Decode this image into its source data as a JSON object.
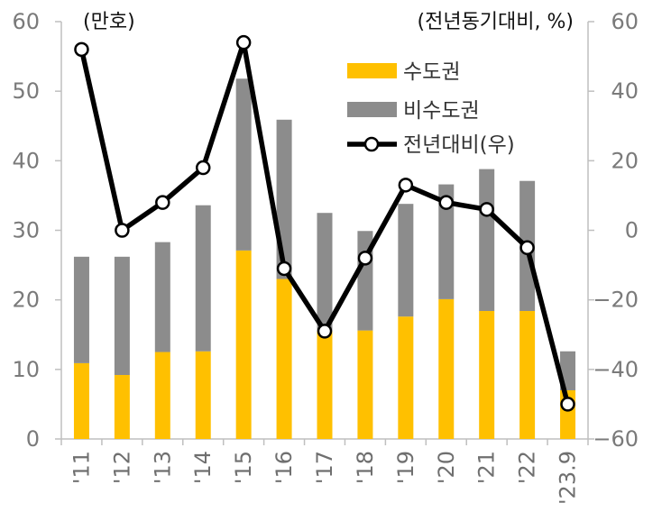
{
  "chart_data": {
    "type": "bar",
    "categories": [
      "'11",
      "'12",
      "'13",
      "'14",
      "'15",
      "'16",
      "'17",
      "'18",
      "'19",
      "'20",
      "'21",
      "'22",
      "'23.9"
    ],
    "series": [
      {
        "name": "수도권",
        "axis": "left",
        "kind": "stacked-bar",
        "color": "#FFC000",
        "values": [
          10.9,
          9.2,
          12.5,
          12.6,
          27.1,
          23.0,
          15.5,
          15.6,
          17.6,
          20.1,
          18.4,
          18.4,
          7.0
        ]
      },
      {
        "name": "비수도권",
        "axis": "left",
        "kind": "stacked-bar",
        "color": "#8C8C8C",
        "values": [
          15.3,
          17.0,
          15.8,
          21.0,
          24.7,
          22.9,
          17.0,
          14.3,
          16.2,
          16.5,
          20.4,
          18.7,
          5.6
        ]
      },
      {
        "name": "전년대비(우)",
        "axis": "right",
        "kind": "line",
        "color": "#000000",
        "values": [
          52,
          0,
          8,
          18,
          54,
          -11,
          -29,
          -8,
          13,
          8,
          6,
          -5,
          -50
        ]
      }
    ],
    "left_axis": {
      "unit_label": "(만호)",
      "ylim": [
        0,
        60
      ],
      "ticks": [
        "0",
        "10",
        "20",
        "30",
        "40",
        "50",
        "60"
      ]
    },
    "right_axis": {
      "unit_label": "(전년동기대비, %)",
      "ylim": [
        -60,
        60
      ],
      "ticks": [
        "−60",
        "−40",
        "−20",
        "0",
        "20",
        "40",
        "60"
      ]
    },
    "legend": {
      "placement": "top-center"
    },
    "grid": false,
    "title": "",
    "xlabel": ""
  }
}
